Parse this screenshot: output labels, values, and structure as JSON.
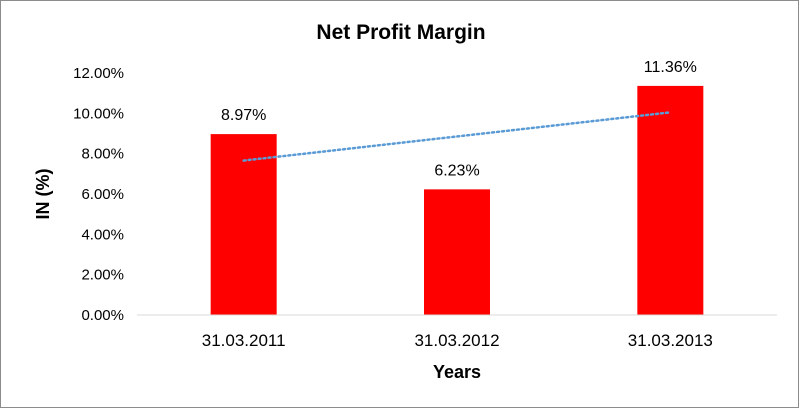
{
  "chart_data": {
    "type": "bar",
    "title": "Net Profit Margin",
    "xlabel": "Years",
    "ylabel": "IN (%)",
    "categories": [
      "31.03.2011",
      "31.03.2012",
      "31.03.2013"
    ],
    "values": [
      8.97,
      6.23,
      11.36
    ],
    "data_labels": [
      "8.97%",
      "6.23%",
      "11.36%"
    ],
    "ylim": [
      0,
      12
    ],
    "yticks": [
      0,
      2,
      4,
      6,
      8,
      10,
      12
    ],
    "ytick_labels": [
      "0.00%",
      "2.00%",
      "4.00%",
      "6.00%",
      "8.00%",
      "10.00%",
      "12.00%"
    ],
    "trendline": {
      "type": "linear",
      "style": "dotted"
    },
    "grid": false,
    "legend": "none",
    "colors": {
      "bar": "#ff0000",
      "trendline": "#5b9bd5",
      "axis": "#d9d9d9"
    }
  }
}
